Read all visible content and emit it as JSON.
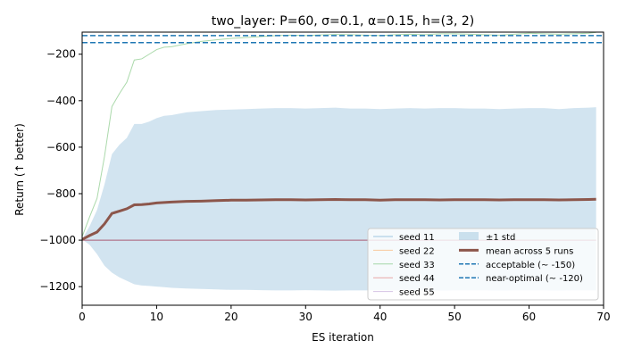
{
  "chart_data": {
    "type": "line",
    "title": "two_layer: P=60, σ=0.1, α=0.15, h=(3, 2)",
    "xlabel": "ES iteration",
    "ylabel": "Return (↑ better)",
    "xlim": [
      0,
      70
    ],
    "ylim": [
      -1280,
      -105
    ],
    "xticks": [
      0,
      10,
      20,
      30,
      40,
      50,
      60,
      70
    ],
    "yticks": [
      -1200,
      -1000,
      -800,
      -600,
      -400,
      -200
    ],
    "grid": false,
    "legend_position": "lower-right",
    "series": [
      {
        "name": "seed 11",
        "color": "#1f77b4",
        "values_desc": "flat at -1000",
        "x": [
          0,
          69
        ],
        "y": [
          -1000,
          -1000
        ]
      },
      {
        "name": "seed 22",
        "color": "#ff7f0e",
        "x": [
          0,
          69
        ],
        "y": [
          -1000,
          -1000
        ]
      },
      {
        "name": "seed 33",
        "color": "#2ca02c",
        "x": [
          0,
          1,
          2,
          3,
          4,
          5,
          6,
          7,
          8,
          9,
          10,
          11,
          12,
          14,
          16,
          18,
          20,
          22,
          24,
          26,
          28,
          30,
          32,
          34,
          36,
          38,
          40,
          42,
          44,
          46,
          48,
          50,
          52,
          54,
          56,
          58,
          60,
          62,
          64,
          66,
          68,
          69
        ],
        "y": [
          -985,
          -900,
          -820,
          -640,
          -425,
          -370,
          -320,
          -225,
          -220,
          -200,
          -180,
          -170,
          -168,
          -155,
          -145,
          -138,
          -132,
          -128,
          -124,
          -120,
          -118,
          -120,
          -117,
          -115,
          -116,
          -118,
          -120,
          -116,
          -114,
          -116,
          -112,
          -112,
          -114,
          -116,
          -118,
          -114,
          -110,
          -112,
          -114,
          -112,
          -110,
          -106
        ]
      },
      {
        "name": "seed 44",
        "color": "#d62728",
        "x": [
          0,
          69
        ],
        "y": [
          -1000,
          -1000
        ]
      },
      {
        "name": "seed 55",
        "color": "#9467bd",
        "x": [
          0,
          69
        ],
        "y": [
          -1000,
          -1000
        ]
      },
      {
        "name": "mean across 5 runs",
        "color": "#8c564b",
        "x": [
          0,
          1,
          2,
          3,
          4,
          5,
          6,
          7,
          8,
          9,
          10,
          11,
          12,
          14,
          16,
          18,
          20,
          22,
          24,
          26,
          28,
          30,
          32,
          34,
          36,
          38,
          40,
          42,
          44,
          46,
          48,
          50,
          52,
          54,
          56,
          58,
          60,
          62,
          64,
          66,
          68,
          69
        ],
        "y": [
          -997,
          -980,
          -965,
          -930,
          -885,
          -875,
          -865,
          -848,
          -847,
          -844,
          -840,
          -838,
          -836,
          -833,
          -832,
          -830,
          -828,
          -828,
          -827,
          -826,
          -826,
          -827,
          -826,
          -825,
          -826,
          -826,
          -828,
          -826,
          -826,
          -826,
          -827,
          -826,
          -826,
          -826,
          -827,
          -826,
          -826,
          -826,
          -827,
          -826,
          -825,
          -824
        ]
      }
    ],
    "band": {
      "name": "±1 std",
      "color": "#1f77b4",
      "x": [
        0,
        1,
        2,
        3,
        4,
        5,
        6,
        7,
        8,
        9,
        10,
        11,
        12,
        14,
        16,
        18,
        20,
        22,
        24,
        26,
        28,
        30,
        32,
        34,
        36,
        38,
        40,
        42,
        44,
        46,
        48,
        50,
        52,
        54,
        56,
        58,
        60,
        62,
        64,
        66,
        68,
        69
      ],
      "upper": [
        -997,
        -940,
        -870,
        -760,
        -630,
        -590,
        -560,
        -500,
        -500,
        -490,
        -475,
        -465,
        -462,
        -450,
        -445,
        -440,
        -438,
        -436,
        -434,
        -432,
        -432,
        -434,
        -432,
        -430,
        -434,
        -434,
        -436,
        -434,
        -432,
        -434,
        -432,
        -432,
        -434,
        -434,
        -436,
        -434,
        -432,
        -432,
        -436,
        -432,
        -430,
        -428
      ],
      "lower": [
        -997,
        -1020,
        -1060,
        -1110,
        -1140,
        -1160,
        -1175,
        -1190,
        -1195,
        -1197,
        -1200,
        -1202,
        -1205,
        -1208,
        -1210,
        -1212,
        -1214,
        -1214,
        -1215,
        -1216,
        -1216,
        -1215,
        -1216,
        -1217,
        -1216,
        -1216,
        -1215,
        -1216,
        -1217,
        -1216,
        -1217,
        -1216,
        -1216,
        -1216,
        -1217,
        -1216,
        -1216,
        -1216,
        -1217,
        -1216,
        -1216,
        -1216
      ]
    },
    "reference_lines": [
      {
        "name": "acceptable (~ -150)",
        "y": -150,
        "color": "#1f77b4",
        "style": "dashed"
      },
      {
        "name": "near-optimal (~ -120)",
        "y": -120,
        "color": "#1f77b4",
        "style": "dashed"
      }
    ],
    "legend": {
      "col1": [
        "seed 11",
        "seed 22",
        "seed 33",
        "seed 44",
        "seed 55"
      ],
      "col2": [
        "±1 std",
        "mean across 5 runs",
        "acceptable (~ -150)",
        "near-optimal (~ -120)"
      ]
    }
  }
}
